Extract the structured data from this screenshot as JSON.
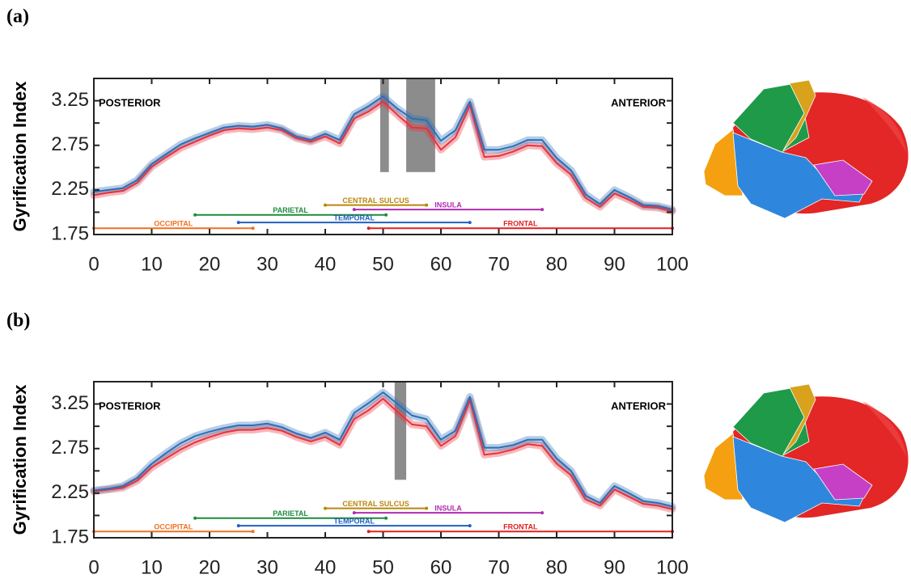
{
  "chart_data": [
    {
      "type": "line",
      "panel": "(a)",
      "ylabel": "Gyrification Index",
      "annotations": [
        "POSTERIOR",
        "ANTERIOR"
      ],
      "xlim": [
        0,
        100
      ],
      "xticks": [
        0,
        10,
        20,
        30,
        40,
        50,
        60,
        70,
        80,
        90,
        100
      ],
      "ylim": [
        1.75,
        3.5
      ],
      "yticks": [
        1.75,
        2.25,
        2.75,
        3.25
      ],
      "yticks_minor": [
        2,
        2.5,
        3
      ],
      "x": [
        0,
        2.5,
        5,
        7.5,
        10,
        12.5,
        15,
        17.5,
        20,
        22.5,
        25,
        27.5,
        30,
        32.5,
        35,
        37.5,
        40,
        42.5,
        45,
        47.5,
        50,
        52.5,
        55,
        57.5,
        60,
        62.5,
        65,
        67.5,
        70,
        72.5,
        75,
        77.5,
        80,
        82.5,
        85,
        87.5,
        90,
        92.5,
        95,
        97.5,
        100
      ],
      "series": [
        {
          "color": "#e8323c",
          "values": [
            2.19,
            2.22,
            2.24,
            2.33,
            2.51,
            2.62,
            2.72,
            2.79,
            2.86,
            2.92,
            2.94,
            2.93,
            2.95,
            2.92,
            2.83,
            2.79,
            2.85,
            2.77,
            3.05,
            3.13,
            3.24,
            3.09,
            2.95,
            2.94,
            2.7,
            2.84,
            3.2,
            2.62,
            2.63,
            2.68,
            2.75,
            2.74,
            2.55,
            2.42,
            2.16,
            2.06,
            2.21,
            2.14,
            2.06,
            2.05,
            2.01
          ]
        },
        {
          "color": "#2a6fb8",
          "values": [
            2.23,
            2.25,
            2.27,
            2.36,
            2.54,
            2.65,
            2.76,
            2.83,
            2.89,
            2.95,
            2.97,
            2.96,
            2.98,
            2.94,
            2.85,
            2.81,
            2.88,
            2.81,
            3.1,
            3.19,
            3.3,
            3.16,
            3.05,
            3.03,
            2.8,
            2.92,
            3.24,
            2.7,
            2.7,
            2.74,
            2.81,
            2.81,
            2.61,
            2.47,
            2.2,
            2.09,
            2.25,
            2.17,
            2.08,
            2.07,
            2.03
          ]
        }
      ],
      "shaded": [
        {
          "x": [
            49.5,
            51
          ],
          "y": [
            2.45,
            3.5
          ],
          "color": "#8c8c8c"
        },
        {
          "x": [
            54,
            59
          ],
          "y": [
            2.45,
            3.5
          ],
          "color": "#8c8c8c"
        }
      ],
      "regions": [
        {
          "name": "CENTRAL SULCUS",
          "color": "#b8860b",
          "start": 40,
          "end": 57.5,
          "level": 2.08
        },
        {
          "name": "INSULA",
          "color": "#b02cb0",
          "start": 45,
          "end": 77.5,
          "level": 2.03
        },
        {
          "name": "PARIETAL",
          "color": "#1e8c3c",
          "start": 17.5,
          "end": 50.5,
          "level": 1.97
        },
        {
          "name": "TEMPORAL",
          "color": "#2060c0",
          "start": 25,
          "end": 65,
          "level": 1.885
        },
        {
          "name": "OCCIPITAL",
          "color": "#f07020",
          "start": 0,
          "end": 27.5,
          "level": 1.82
        },
        {
          "name": "FRONTAL",
          "color": "#e02020",
          "start": 47.5,
          "end": 100,
          "level": 1.82
        }
      ]
    },
    {
      "type": "line",
      "panel": "(b)",
      "ylabel": "Gyrification Index",
      "annotations": [
        "POSTERIOR",
        "ANTERIOR"
      ],
      "xlim": [
        0,
        100
      ],
      "xticks": [
        0,
        10,
        20,
        30,
        40,
        50,
        60,
        70,
        80,
        90,
        100
      ],
      "ylim": [
        1.75,
        3.5
      ],
      "yticks": [
        1.75,
        2.25,
        2.75,
        3.25
      ],
      "yticks_minor": [
        2,
        2.5,
        3
      ],
      "x": [
        0,
        2.5,
        5,
        7.5,
        10,
        12.5,
        15,
        17.5,
        20,
        22.5,
        25,
        27.5,
        30,
        32.5,
        35,
        37.5,
        40,
        42.5,
        45,
        47.5,
        50,
        52.5,
        55,
        57.5,
        60,
        62.5,
        65,
        67.5,
        70,
        72.5,
        75,
        77.5,
        80,
        82.5,
        85,
        87.5,
        90,
        92.5,
        95,
        97.5,
        100
      ],
      "series": [
        {
          "color": "#e8323c",
          "values": [
            2.27,
            2.29,
            2.31,
            2.39,
            2.54,
            2.64,
            2.74,
            2.82,
            2.88,
            2.93,
            2.96,
            2.96,
            2.98,
            2.95,
            2.88,
            2.83,
            2.88,
            2.79,
            3.08,
            3.18,
            3.31,
            3.16,
            3.02,
            3.0,
            2.78,
            2.89,
            3.29,
            2.68,
            2.7,
            2.74,
            2.8,
            2.78,
            2.58,
            2.45,
            2.18,
            2.11,
            2.29,
            2.21,
            2.13,
            2.11,
            2.07
          ]
        },
        {
          "color": "#2a6fb8",
          "values": [
            2.28,
            2.3,
            2.33,
            2.42,
            2.58,
            2.7,
            2.81,
            2.89,
            2.94,
            2.98,
            3.01,
            3.01,
            3.03,
            2.99,
            2.92,
            2.87,
            2.93,
            2.85,
            3.15,
            3.26,
            3.38,
            3.25,
            3.12,
            3.08,
            2.85,
            2.95,
            3.33,
            2.76,
            2.76,
            2.79,
            2.85,
            2.85,
            2.64,
            2.5,
            2.22,
            2.14,
            2.33,
            2.25,
            2.16,
            2.14,
            2.1
          ]
        }
      ],
      "shaded": [
        {
          "x": [
            52,
            54
          ],
          "y": [
            2.4,
            3.5
          ],
          "color": "#8c8c8c"
        }
      ],
      "regions": [
        {
          "name": "CENTRAL SULCUS",
          "color": "#b8860b",
          "start": 40,
          "end": 57.5,
          "level": 2.08
        },
        {
          "name": "INSULA",
          "color": "#b02cb0",
          "start": 45,
          "end": 77.5,
          "level": 2.03
        },
        {
          "name": "PARIETAL",
          "color": "#1e8c3c",
          "start": 17.5,
          "end": 50.5,
          "level": 1.97
        },
        {
          "name": "TEMPORAL",
          "color": "#2060c0",
          "start": 25,
          "end": 65,
          "level": 1.885
        },
        {
          "name": "OCCIPITAL",
          "color": "#f07020",
          "start": 0,
          "end": 27.5,
          "level": 1.82
        },
        {
          "name": "FRONTAL",
          "color": "#e02020",
          "start": 47.5,
          "end": 100,
          "level": 1.82
        }
      ]
    }
  ]
}
